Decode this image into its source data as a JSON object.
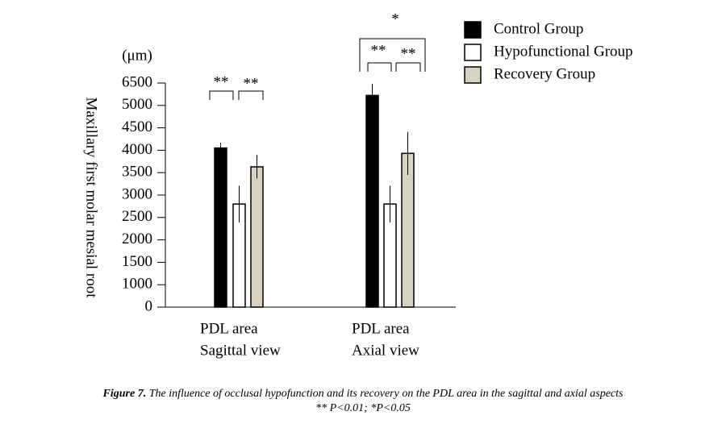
{
  "chart_data": {
    "type": "bar",
    "unit_label": "(μm)",
    "y_label": "Maxillary first molar mesial root",
    "categories": [
      [
        "PDL area",
        "Sagittal view"
      ],
      [
        "PDL area",
        "Axial view"
      ]
    ],
    "series": [
      {
        "name": "Control Group",
        "color": "#000000",
        "values": [
          4050,
          5670
        ],
        "errors": [
          120,
          780
        ]
      },
      {
        "name": "Hypofunctional Group",
        "color": "#ffffff",
        "values": [
          2800,
          2800
        ],
        "errors": [
          410,
          410
        ]
      },
      {
        "name": "Recovery Group",
        "color": "#d8d3c0",
        "values": [
          3630,
          3930
        ],
        "errors": [
          260,
          480
        ]
      }
    ],
    "ylim": [
      0,
      6500
    ],
    "yticks": [
      0,
      1000,
      1500,
      2000,
      2500,
      3000,
      3500,
      4000,
      4500,
      5000,
      6500
    ],
    "annotations": [
      "**",
      "**",
      "**",
      "**",
      "*"
    ],
    "caption": {
      "bold": "Figure 7.",
      "text": "The influence of occlusal hypofunction and its recovery on the PDL  area in the sagittal and axial aspects",
      "note": "** P<0.01; *P<0.05"
    }
  }
}
